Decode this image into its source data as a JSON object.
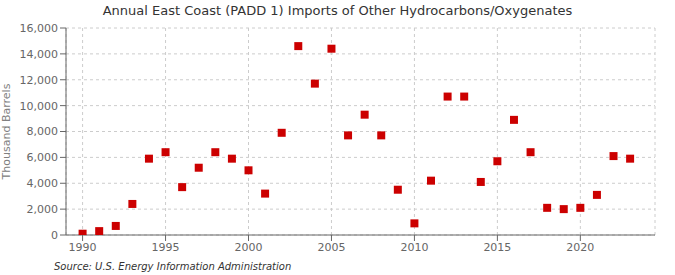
{
  "chart_data": {
    "type": "scatter",
    "title": "Annual East Coast (PADD 1) Imports of Other Hydrocarbons/Oxygenates",
    "y_label": "Thousand Barrels",
    "annotations": [
      "Source: U.S. Energy Information Administration"
    ],
    "x": [
      1990,
      1991,
      1992,
      1993,
      1994,
      1995,
      1996,
      1997,
      1998,
      1999,
      2000,
      2001,
      2002,
      2003,
      2004,
      2005,
      2006,
      2007,
      2008,
      2009,
      2010,
      2011,
      2012,
      2013,
      2014,
      2015,
      2016,
      2017,
      2018,
      2019,
      2020,
      2021,
      2022,
      2023
    ],
    "values": [
      100,
      300,
      700,
      2400,
      5900,
      6400,
      3700,
      5200,
      6400,
      5900,
      5000,
      3200,
      7900,
      14600,
      11700,
      14400,
      7700,
      9300,
      7700,
      3500,
      900,
      4200,
      10700,
      10700,
      4100,
      5700,
      8900,
      6400,
      2100,
      2000,
      2100,
      3100,
      6100,
      5900
    ],
    "color": "#cc0000",
    "marker": "square",
    "xlim": [
      1989.0,
      2024.5
    ],
    "ylim": [
      0,
      16000
    ],
    "xticks": [
      1990,
      1995,
      2000,
      2005,
      2010,
      2015,
      2020
    ],
    "yticks": [
      0,
      {
        "value": 2000,
        "label": "2,000"
      },
      {
        "value": 4000,
        "label": "4,000"
      },
      {
        "value": 6000,
        "label": "6,000"
      },
      {
        "value": 8000,
        "label": "8,000"
      },
      {
        "value": 10000,
        "label": "10,000"
      },
      {
        "value": 12000,
        "label": "12,000"
      },
      {
        "value": 14000,
        "label": "14,000"
      },
      {
        "value": 16000,
        "label": "16,000"
      }
    ],
    "grid": true
  }
}
